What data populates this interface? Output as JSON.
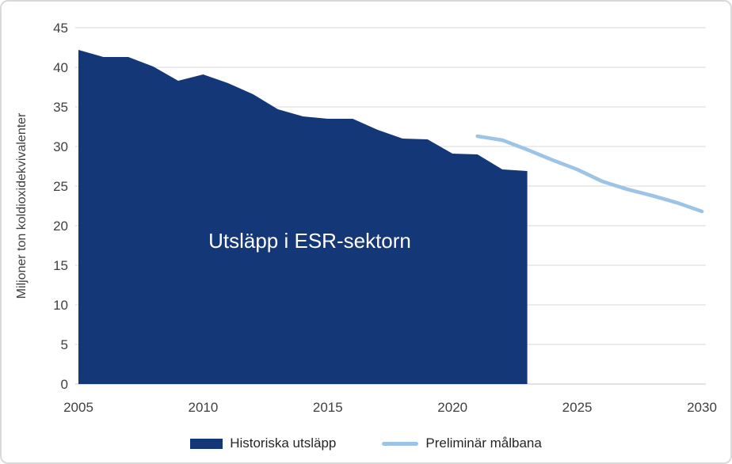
{
  "colors": {
    "area": "#143778",
    "target_line": "#9DC3E6",
    "grid": "#D9D9D9",
    "axis_line": "#D9D9D9",
    "tick_text": "#404040",
    "inner_label_text": "#FFFFFF",
    "frame_border": "#D9D9D9",
    "background": "#FFFFFF"
  },
  "chart_data": {
    "type": "area",
    "title": "",
    "inner_label": "Utsläpp i ESR-sektorn",
    "xlabel": "",
    "ylabel": "Miljoner ton koldioxidekvivalenter",
    "xlim": [
      2005,
      2030
    ],
    "ylim": [
      0,
      45
    ],
    "yticks": [
      0,
      5,
      10,
      15,
      20,
      25,
      30,
      35,
      40,
      45
    ],
    "xticks": [
      2005,
      2010,
      2015,
      2020,
      2025,
      2030
    ],
    "grid": "horizontal",
    "legend_position": "bottom",
    "series": [
      {
        "name": "Historiska utsläpp",
        "type": "area",
        "color": "#143778",
        "x": [
          2005,
          2006,
          2007,
          2008,
          2009,
          2010,
          2011,
          2012,
          2013,
          2014,
          2015,
          2016,
          2017,
          2018,
          2019,
          2020,
          2021,
          2022,
          2023
        ],
        "values": [
          42.2,
          41.3,
          41.3,
          40.1,
          38.3,
          39.1,
          38.0,
          36.6,
          34.7,
          33.8,
          33.5,
          33.5,
          32.1,
          31.0,
          30.9,
          29.1,
          29.0,
          27.1,
          26.9
        ]
      },
      {
        "name": "Preliminär målbana",
        "type": "line",
        "color": "#9DC3E6",
        "x": [
          2021,
          2022,
          2023,
          2024,
          2025,
          2026,
          2027,
          2028,
          2029,
          2030
        ],
        "values": [
          31.3,
          30.8,
          29.6,
          28.3,
          27.1,
          25.6,
          24.6,
          23.8,
          22.9,
          21.8
        ]
      }
    ]
  }
}
